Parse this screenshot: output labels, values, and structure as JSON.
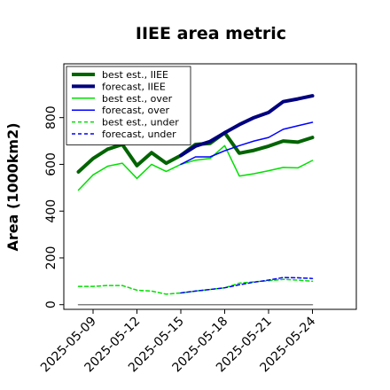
{
  "chart_data": {
    "type": "line",
    "title": "IIEE area metric",
    "ylabel": "Area (1000km2)",
    "xlabel": "",
    "ylim": [
      -20,
      1030
    ],
    "yticks": [
      0,
      200,
      400,
      600,
      800
    ],
    "xlim": [
      "2025-05-07",
      "2025-05-27"
    ],
    "xticks": [
      "2025-05-09",
      "2025-05-12",
      "2025-05-15",
      "2025-05-18",
      "2025-05-21",
      "2025-05-24"
    ],
    "highlighted_xtick": "2025-05-15",
    "highlight_color": "#228B22",
    "grid": false,
    "legend_position": "upper-left",
    "series": [
      {
        "name": "best est., IIEE",
        "color": "#006400",
        "style": "solid",
        "width": 4,
        "x": [
          "2025-05-08",
          "2025-05-09",
          "2025-05-10",
          "2025-05-11",
          "2025-05-12",
          "2025-05-13",
          "2025-05-14",
          "2025-05-15",
          "2025-05-16",
          "2025-05-17",
          "2025-05-18",
          "2025-05-19",
          "2025-05-20",
          "2025-05-21",
          "2025-05-22",
          "2025-05-23",
          "2025-05-24"
        ],
        "values": [
          568,
          625,
          665,
          685,
          595,
          650,
          605,
          638,
          685,
          690,
          735,
          648,
          660,
          678,
          700,
          695,
          715
        ]
      },
      {
        "name": "forecast, IIEE",
        "color": "#00007f",
        "style": "solid",
        "width": 4,
        "x": [
          "2025-05-15",
          "2025-05-16",
          "2025-05-17",
          "2025-05-18",
          "2025-05-19",
          "2025-05-20",
          "2025-05-21",
          "2025-05-22",
          "2025-05-23",
          "2025-05-24"
        ],
        "values": [
          638,
          678,
          698,
          735,
          770,
          800,
          822,
          868,
          880,
          893
        ]
      },
      {
        "name": "best est., over",
        "color": "#00e000",
        "style": "solid",
        "width": 1.5,
        "x": [
          "2025-05-08",
          "2025-05-09",
          "2025-05-10",
          "2025-05-11",
          "2025-05-12",
          "2025-05-13",
          "2025-05-14",
          "2025-05-15",
          "2025-05-16",
          "2025-05-17",
          "2025-05-18",
          "2025-05-19",
          "2025-05-20",
          "2025-05-21",
          "2025-05-22",
          "2025-05-23",
          "2025-05-24"
        ],
        "values": [
          490,
          555,
          592,
          605,
          540,
          600,
          570,
          600,
          618,
          625,
          680,
          550,
          560,
          573,
          587,
          585,
          617
        ]
      },
      {
        "name": "forecast, over",
        "color": "#0000ff",
        "style": "solid",
        "width": 1.5,
        "x": [
          "2025-05-15",
          "2025-05-16",
          "2025-05-17",
          "2025-05-18",
          "2025-05-19",
          "2025-05-20",
          "2025-05-21",
          "2025-05-22",
          "2025-05-23",
          "2025-05-24"
        ],
        "values": [
          600,
          632,
          632,
          658,
          680,
          700,
          715,
          750,
          765,
          780
        ]
      },
      {
        "name": "best est., under",
        "color": "#00e000",
        "style": "dashed",
        "width": 1.5,
        "x": [
          "2025-05-08",
          "2025-05-09",
          "2025-05-10",
          "2025-05-11",
          "2025-05-12",
          "2025-05-13",
          "2025-05-14",
          "2025-05-15",
          "2025-05-16",
          "2025-05-17",
          "2025-05-18",
          "2025-05-19",
          "2025-05-20",
          "2025-05-21",
          "2025-05-22",
          "2025-05-23",
          "2025-05-24"
        ],
        "values": [
          78,
          78,
          82,
          82,
          62,
          58,
          45,
          50,
          58,
          65,
          72,
          92,
          98,
          102,
          108,
          105,
          100
        ]
      },
      {
        "name": "forecast, under",
        "color": "#0000ff",
        "style": "dashed",
        "width": 1.5,
        "x": [
          "2025-05-15",
          "2025-05-16",
          "2025-05-17",
          "2025-05-18",
          "2025-05-19",
          "2025-05-20",
          "2025-05-21",
          "2025-05-22",
          "2025-05-23",
          "2025-05-24"
        ],
        "values": [
          50,
          58,
          65,
          72,
          85,
          96,
          105,
          116,
          115,
          112
        ]
      },
      {
        "name": "",
        "color": "#808080",
        "style": "solid",
        "width": 1.5,
        "x": [
          "2025-05-08",
          "2025-05-24"
        ],
        "values": [
          0,
          0
        ]
      }
    ]
  }
}
